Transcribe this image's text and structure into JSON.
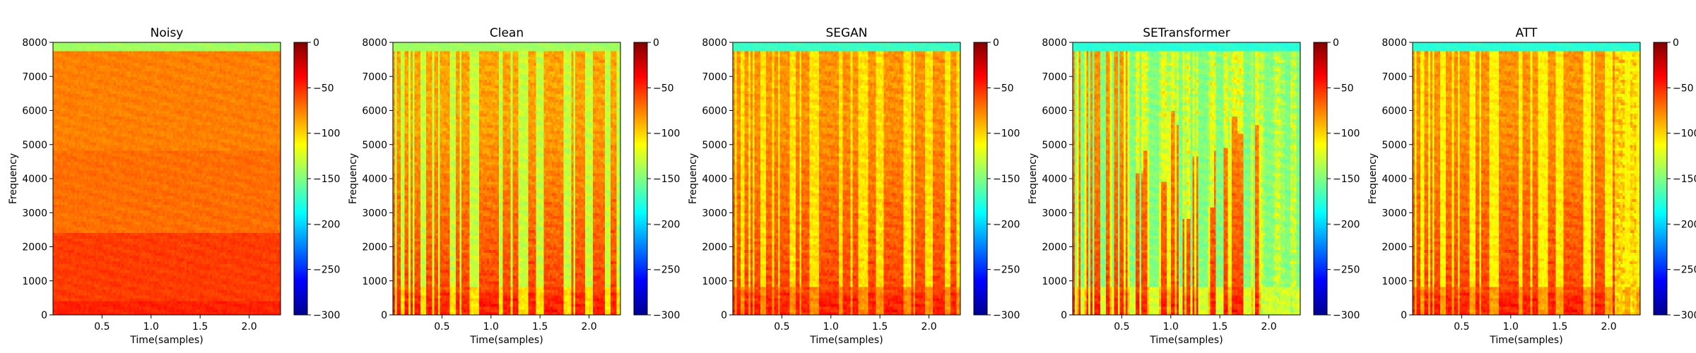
{
  "figure": {
    "colormap": "jet",
    "panels": [
      {
        "title": "Noisy",
        "xlabel": "Time(samples)",
        "ylabel": "Frequency"
      },
      {
        "title": "Clean",
        "xlabel": "Time(samples)",
        "ylabel": "Frequency"
      },
      {
        "title": "SEGAN",
        "xlabel": "Time(samples)",
        "ylabel": "Frequency"
      },
      {
        "title": "SETransformer",
        "xlabel": "Time(samples)",
        "ylabel": "Frequency"
      },
      {
        "title": "ATT",
        "xlabel": "Time(samples)",
        "ylabel": "Frequency"
      }
    ]
  },
  "chart_data": [
    {
      "type": "heatmap",
      "title": "Noisy",
      "xlabel": "Time(samples)",
      "ylabel": "Frequency",
      "xlim": [
        0,
        2.32
      ],
      "ylim": [
        0,
        8000
      ],
      "xticks": [
        "0.5",
        "1.0",
        "1.5",
        "2.0"
      ],
      "yticks": [
        "0",
        "1000",
        "2000",
        "3000",
        "4000",
        "5000",
        "6000",
        "7000",
        "8000"
      ],
      "colorbar": {
        "range": [
          -300,
          0
        ],
        "ticks": [
          "0",
          "−50",
          "−100",
          "−150",
          "−200",
          "−250",
          "−300"
        ],
        "colormap": "jet"
      },
      "level_db": {
        "low_freq": -55,
        "mid_freq": -70,
        "high_freq": -75,
        "top_band": -140
      }
    },
    {
      "type": "heatmap",
      "title": "Clean",
      "xlabel": "Time(samples)",
      "ylabel": "Frequency",
      "xlim": [
        0,
        2.32
      ],
      "ylim": [
        0,
        8000
      ],
      "xticks": [
        "0.5",
        "1.0",
        "1.5",
        "2.0"
      ],
      "yticks": [
        "0",
        "1000",
        "2000",
        "3000",
        "4000",
        "5000",
        "6000",
        "7000",
        "8000"
      ],
      "colorbar": {
        "range": [
          -300,
          0
        ],
        "ticks": [
          "0",
          "−50",
          "−100",
          "−150",
          "−200",
          "−250",
          "−300"
        ],
        "colormap": "jet"
      },
      "level_db": {
        "speech_low": -55,
        "speech_high": -85,
        "silence": -130,
        "top_band": -140
      }
    },
    {
      "type": "heatmap",
      "title": "SEGAN",
      "xlabel": "Time(samples)",
      "ylabel": "Frequency",
      "xlim": [
        0,
        2.32
      ],
      "ylim": [
        0,
        8000
      ],
      "xticks": [
        "0.5",
        "1.0",
        "1.5",
        "2.0"
      ],
      "yticks": [
        "0",
        "1000",
        "2000",
        "3000",
        "4000",
        "5000",
        "6000",
        "7000",
        "8000"
      ],
      "colorbar": {
        "range": [
          -300,
          0
        ],
        "ticks": [
          "0",
          "−50",
          "−100",
          "−150",
          "−200",
          "−250",
          "−300"
        ],
        "colormap": "jet"
      },
      "level_db": {
        "speech_low": -55,
        "speech_high": -80,
        "silence": -105,
        "top_band": -170
      }
    },
    {
      "type": "heatmap",
      "title": "SETransformer",
      "xlabel": "Time(samples)",
      "ylabel": "Frequency",
      "xlim": [
        0,
        2.32
      ],
      "ylim": [
        0,
        8000
      ],
      "xticks": [
        "0.5",
        "1.0",
        "1.5",
        "2.0"
      ],
      "yticks": [
        "0",
        "1000",
        "2000",
        "3000",
        "4000",
        "5000",
        "6000",
        "7000",
        "8000"
      ],
      "colorbar": {
        "range": [
          -300,
          0
        ],
        "ticks": [
          "0",
          "−50",
          "−100",
          "−150",
          "−200",
          "−250",
          "−300"
        ],
        "colormap": "jet"
      },
      "level_db": {
        "speech_low": -55,
        "speech_high": -80,
        "silence": -150,
        "top_band": -175
      }
    },
    {
      "type": "heatmap",
      "title": "ATT",
      "xlabel": "Time(samples)",
      "ylabel": "Frequency",
      "xlim": [
        0,
        2.32
      ],
      "ylim": [
        0,
        8000
      ],
      "xticks": [
        "0.5",
        "1.0",
        "1.5",
        "2.0"
      ],
      "yticks": [
        "0",
        "1000",
        "2000",
        "3000",
        "4000",
        "5000",
        "6000",
        "7000",
        "8000"
      ],
      "colorbar": {
        "range": [
          -300,
          0
        ],
        "ticks": [
          "0",
          "−50",
          "−100",
          "−150",
          "−200",
          "−250",
          "−300"
        ],
        "colormap": "jet"
      },
      "level_db": {
        "speech_low": -55,
        "speech_high": -80,
        "silence": -110,
        "top_band": -175
      }
    }
  ]
}
